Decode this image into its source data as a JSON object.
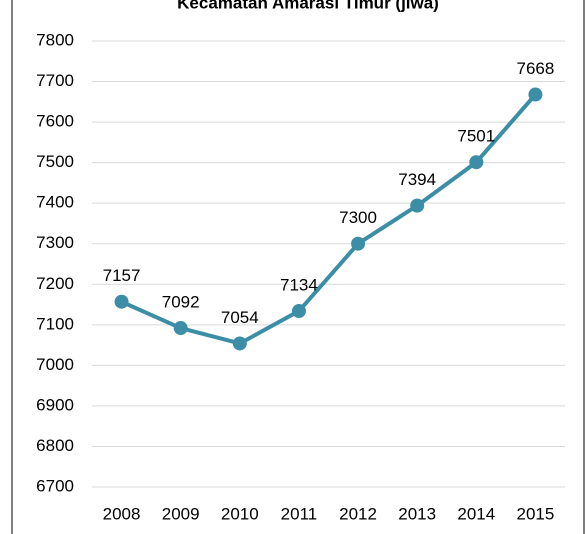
{
  "chart_data": {
    "type": "line",
    "title": "Kecamatan Amarasi Timur (jiwa)",
    "categories": [
      "2008",
      "2009",
      "2010",
      "2011",
      "2012",
      "2013",
      "2014",
      "2015"
    ],
    "series": [
      {
        "color": "#3b8ea5",
        "values": [
          7157,
          7092,
          7054,
          7134,
          7300,
          7394,
          7501,
          7668
        ]
      }
    ],
    "ylim": [
      6700,
      7800
    ],
    "yticks": [
      6700,
      6800,
      6900,
      7000,
      7100,
      7200,
      7300,
      7400,
      7500,
      7600,
      7700,
      7800
    ],
    "grid": true
  }
}
